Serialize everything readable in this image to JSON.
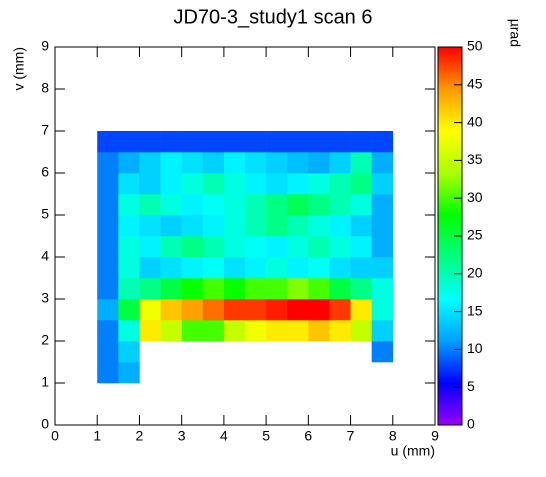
{
  "chart_data": {
    "type": "heatmap",
    "title": "JD70-3_study1 scan 6",
    "x_label": "u (mm)",
    "y_label": "v (mm)",
    "z_label": "µrad",
    "xlim": [
      0,
      9
    ],
    "xticks": [
      0,
      1,
      2,
      3,
      4,
      5,
      6,
      7,
      8,
      9
    ],
    "ylim": [
      0,
      9
    ],
    "yticks": [
      0,
      1,
      2,
      3,
      4,
      5,
      6,
      7,
      8,
      9
    ],
    "zlim": [
      0,
      50
    ],
    "zticks": [
      0,
      5,
      10,
      15,
      20,
      25,
      30,
      35,
      40,
      45,
      50
    ],
    "colorscale": [
      "#9900ff",
      "#0000ff",
      "#00a0ff",
      "#00ffff",
      "#00ff80",
      "#00ff00",
      "#aaff00",
      "#ffff00",
      "#ff9900",
      "#ff0000"
    ],
    "xbins": [
      1.0,
      1.5,
      2.0,
      2.5,
      3.0,
      3.5,
      4.0,
      4.5,
      5.0,
      5.5,
      6.0,
      6.5,
      7.0,
      7.5,
      8.0
    ],
    "ybins": [
      1.0,
      1.5,
      2.0,
      2.5,
      3.0,
      3.5,
      4.0,
      4.5,
      5.0,
      5.5,
      6.0,
      6.5,
      7.0
    ],
    "values": [
      [
        10,
        12,
        null,
        null,
        null,
        null,
        null,
        null,
        null,
        null,
        null,
        null,
        null,
        null
      ],
      [
        10,
        14,
        null,
        null,
        null,
        null,
        null,
        null,
        null,
        null,
        null,
        null,
        null,
        10
      ],
      [
        10,
        18,
        40,
        35,
        30,
        30,
        35,
        38,
        40,
        40,
        42,
        40,
        35,
        14
      ],
      [
        12,
        25,
        38,
        42,
        44,
        46,
        48,
        48,
        49,
        50,
        50,
        48,
        40,
        18
      ],
      [
        10,
        20,
        22,
        25,
        28,
        30,
        28,
        30,
        30,
        32,
        30,
        25,
        22,
        18
      ],
      [
        10,
        18,
        14,
        15,
        16,
        17,
        15,
        16,
        18,
        16,
        17,
        15,
        14,
        14
      ],
      [
        10,
        18,
        16,
        20,
        22,
        20,
        18,
        17,
        16,
        18,
        20,
        18,
        16,
        12
      ],
      [
        10,
        16,
        15,
        14,
        15,
        16,
        18,
        20,
        22,
        20,
        18,
        16,
        14,
        12
      ],
      [
        10,
        18,
        20,
        18,
        16,
        17,
        18,
        20,
        22,
        24,
        22,
        20,
        18,
        12
      ],
      [
        10,
        15,
        14,
        16,
        18,
        20,
        18,
        16,
        15,
        16,
        18,
        20,
        22,
        14
      ],
      [
        10,
        12,
        14,
        16,
        15,
        14,
        16,
        15,
        14,
        13,
        12,
        14,
        20,
        12
      ],
      [
        8,
        8,
        8,
        8,
        8,
        8,
        8,
        8,
        8,
        8,
        8,
        8,
        8,
        8
      ]
    ]
  }
}
